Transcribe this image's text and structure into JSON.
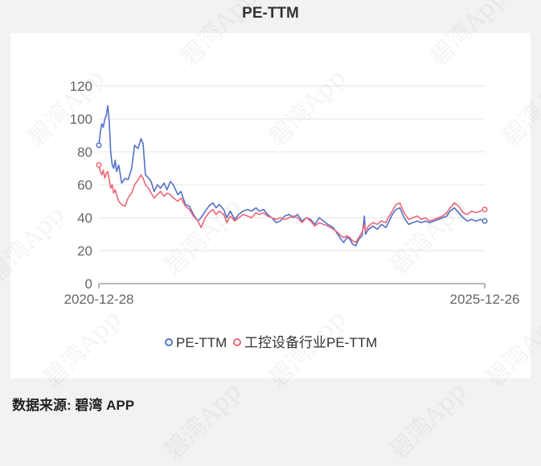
{
  "title": "PE-TTM",
  "source": "数据来源: 碧湾 APP",
  "watermark": "碧湾App",
  "chart_data": {
    "type": "line",
    "title": "PE-TTM",
    "x_start": "2020-12-28",
    "x_end": "2025-12-26",
    "x_ticks": [
      "2020-12-28",
      "2025-12-26"
    ],
    "y_ticks": [
      0,
      20,
      40,
      60,
      80,
      100,
      120
    ],
    "ylim": [
      0,
      120
    ],
    "grid": true,
    "legend_position": "bottom",
    "series": [
      {
        "name": "PE-TTM",
        "color": "#5470c6",
        "points": [
          [
            "2020-12-28",
            84
          ],
          [
            "2021-01-04",
            92
          ],
          [
            "2021-01-11",
            97
          ],
          [
            "2021-01-18",
            95
          ],
          [
            "2021-01-25",
            100
          ],
          [
            "2021-02-01",
            102
          ],
          [
            "2021-02-08",
            108
          ],
          [
            "2021-02-15",
            98
          ],
          [
            "2021-02-22",
            80
          ],
          [
            "2021-03-01",
            72
          ],
          [
            "2021-03-08",
            70
          ],
          [
            "2021-03-15",
            75
          ],
          [
            "2021-03-22",
            68
          ],
          [
            "2021-04-01",
            72
          ],
          [
            "2021-04-15",
            61
          ],
          [
            "2021-05-01",
            64
          ],
          [
            "2021-05-15",
            63
          ],
          [
            "2021-06-01",
            70
          ],
          [
            "2021-06-15",
            84
          ],
          [
            "2021-07-01",
            82
          ],
          [
            "2021-07-15",
            88
          ],
          [
            "2021-07-25",
            85
          ],
          [
            "2021-08-05",
            66
          ],
          [
            "2021-08-20",
            64
          ],
          [
            "2021-09-01",
            62
          ],
          [
            "2021-09-15",
            56
          ],
          [
            "2021-10-01",
            60
          ],
          [
            "2021-10-15",
            58
          ],
          [
            "2021-11-01",
            61
          ],
          [
            "2021-11-15",
            57
          ],
          [
            "2021-12-01",
            62
          ],
          [
            "2021-12-15",
            60
          ],
          [
            "2022-01-05",
            54
          ],
          [
            "2022-01-20",
            56
          ],
          [
            "2022-02-10",
            48
          ],
          [
            "2022-03-01",
            47
          ],
          [
            "2022-03-20",
            42
          ],
          [
            "2022-04-10",
            38
          ],
          [
            "2022-04-25",
            40
          ],
          [
            "2022-05-15",
            44
          ],
          [
            "2022-06-01",
            47
          ],
          [
            "2022-06-20",
            49
          ],
          [
            "2022-07-05",
            46
          ],
          [
            "2022-07-20",
            48
          ],
          [
            "2022-08-10",
            45
          ],
          [
            "2022-08-25",
            40
          ],
          [
            "2022-09-10",
            44
          ],
          [
            "2022-10-01",
            39
          ],
          [
            "2022-10-20",
            42
          ],
          [
            "2022-11-10",
            44
          ],
          [
            "2022-12-01",
            45
          ],
          [
            "2022-12-20",
            44
          ],
          [
            "2023-01-10",
            46
          ],
          [
            "2023-01-25",
            44
          ],
          [
            "2023-02-15",
            45
          ],
          [
            "2023-03-05",
            42
          ],
          [
            "2023-03-25",
            40
          ],
          [
            "2023-04-15",
            37
          ],
          [
            "2023-05-05",
            38
          ],
          [
            "2023-05-25",
            41
          ],
          [
            "2023-06-15",
            42
          ],
          [
            "2023-07-05",
            40
          ],
          [
            "2023-07-25",
            42
          ],
          [
            "2023-08-15",
            38
          ],
          [
            "2023-09-05",
            40
          ],
          [
            "2023-09-25",
            39
          ],
          [
            "2023-10-15",
            36
          ],
          [
            "2023-11-05",
            40
          ],
          [
            "2023-11-25",
            38
          ],
          [
            "2023-12-15",
            36
          ],
          [
            "2024-01-10",
            34
          ],
          [
            "2024-01-31",
            30
          ],
          [
            "2024-02-15",
            27
          ],
          [
            "2024-02-28",
            25
          ],
          [
            "2024-03-15",
            28
          ],
          [
            "2024-03-28",
            27
          ],
          [
            "2024-04-10",
            24
          ],
          [
            "2024-04-25",
            23
          ],
          [
            "2024-05-10",
            27
          ],
          [
            "2024-05-25",
            29
          ],
          [
            "2024-06-05",
            41
          ],
          [
            "2024-06-10",
            30
          ],
          [
            "2024-06-25",
            33
          ],
          [
            "2024-07-15",
            35
          ],
          [
            "2024-08-05",
            33
          ],
          [
            "2024-08-25",
            36
          ],
          [
            "2024-09-15",
            34
          ],
          [
            "2024-09-30",
            38
          ],
          [
            "2024-10-15",
            42
          ],
          [
            "2024-11-01",
            45
          ],
          [
            "2024-11-20",
            46
          ],
          [
            "2024-12-10",
            40
          ],
          [
            "2024-12-31",
            36
          ],
          [
            "2025-01-20",
            37
          ],
          [
            "2025-02-10",
            38
          ],
          [
            "2025-03-01",
            37
          ],
          [
            "2025-03-20",
            38
          ],
          [
            "2025-04-10",
            37
          ],
          [
            "2025-05-01",
            38
          ],
          [
            "2025-05-20",
            39
          ],
          [
            "2025-06-10",
            40
          ],
          [
            "2025-06-30",
            41
          ],
          [
            "2025-07-15",
            44
          ],
          [
            "2025-08-05",
            46
          ],
          [
            "2025-08-25",
            43
          ],
          [
            "2025-09-15",
            40
          ],
          [
            "2025-10-05",
            38
          ],
          [
            "2025-10-25",
            39
          ],
          [
            "2025-11-15",
            38
          ],
          [
            "2025-12-05",
            39
          ],
          [
            "2025-12-26",
            38
          ]
        ]
      },
      {
        "name": "工控设备行业PE-TTM",
        "color": "#ee6677",
        "points": [
          [
            "2020-12-28",
            72
          ],
          [
            "2021-01-04",
            68
          ],
          [
            "2021-01-11",
            66
          ],
          [
            "2021-01-18",
            69
          ],
          [
            "2021-01-25",
            64
          ],
          [
            "2021-02-01",
            67
          ],
          [
            "2021-02-08",
            68
          ],
          [
            "2021-02-15",
            63
          ],
          [
            "2021-02-22",
            58
          ],
          [
            "2021-03-01",
            60
          ],
          [
            "2021-03-08",
            55
          ],
          [
            "2021-03-15",
            57
          ],
          [
            "2021-03-22",
            54
          ],
          [
            "2021-04-01",
            50
          ],
          [
            "2021-04-15",
            48
          ],
          [
            "2021-05-01",
            47
          ],
          [
            "2021-05-15",
            52
          ],
          [
            "2021-06-01",
            55
          ],
          [
            "2021-06-15",
            60
          ],
          [
            "2021-07-01",
            63
          ],
          [
            "2021-07-15",
            66
          ],
          [
            "2021-07-25",
            64
          ],
          [
            "2021-08-05",
            60
          ],
          [
            "2021-08-20",
            58
          ],
          [
            "2021-09-01",
            55
          ],
          [
            "2021-09-15",
            52
          ],
          [
            "2021-10-01",
            54
          ],
          [
            "2021-10-15",
            56
          ],
          [
            "2021-11-01",
            53
          ],
          [
            "2021-11-15",
            55
          ],
          [
            "2021-12-01",
            54
          ],
          [
            "2021-12-15",
            52
          ],
          [
            "2022-01-05",
            50
          ],
          [
            "2022-01-20",
            52
          ],
          [
            "2022-02-10",
            47
          ],
          [
            "2022-03-01",
            45
          ],
          [
            "2022-03-20",
            41
          ],
          [
            "2022-04-10",
            38
          ],
          [
            "2022-04-25",
            34
          ],
          [
            "2022-05-15",
            40
          ],
          [
            "2022-06-01",
            43
          ],
          [
            "2022-06-20",
            45
          ],
          [
            "2022-07-05",
            42
          ],
          [
            "2022-07-20",
            44
          ],
          [
            "2022-08-10",
            42
          ],
          [
            "2022-08-25",
            37
          ],
          [
            "2022-09-10",
            41
          ],
          [
            "2022-10-01",
            38
          ],
          [
            "2022-10-20",
            40
          ],
          [
            "2022-11-10",
            42
          ],
          [
            "2022-12-01",
            41
          ],
          [
            "2022-12-20",
            40
          ],
          [
            "2023-01-10",
            43
          ],
          [
            "2023-01-25",
            42
          ],
          [
            "2023-02-15",
            43
          ],
          [
            "2023-03-05",
            41
          ],
          [
            "2023-03-25",
            40
          ],
          [
            "2023-04-15",
            39
          ],
          [
            "2023-05-05",
            40
          ],
          [
            "2023-05-25",
            39
          ],
          [
            "2023-06-15",
            40
          ],
          [
            "2023-07-05",
            41
          ],
          [
            "2023-07-25",
            40
          ],
          [
            "2023-08-15",
            37
          ],
          [
            "2023-09-05",
            40
          ],
          [
            "2023-09-25",
            38
          ],
          [
            "2023-10-15",
            35
          ],
          [
            "2023-11-05",
            37
          ],
          [
            "2023-11-25",
            36
          ],
          [
            "2023-12-15",
            35
          ],
          [
            "2024-01-10",
            33
          ],
          [
            "2024-01-31",
            31
          ],
          [
            "2024-02-15",
            29
          ],
          [
            "2024-02-28",
            28
          ],
          [
            "2024-03-15",
            29
          ],
          [
            "2024-03-28",
            28
          ],
          [
            "2024-04-10",
            26
          ],
          [
            "2024-04-25",
            25
          ],
          [
            "2024-05-10",
            28
          ],
          [
            "2024-05-25",
            31
          ],
          [
            "2024-06-05",
            36
          ],
          [
            "2024-06-10",
            32
          ],
          [
            "2024-06-25",
            35
          ],
          [
            "2024-07-15",
            37
          ],
          [
            "2024-08-05",
            36
          ],
          [
            "2024-08-25",
            38
          ],
          [
            "2024-09-15",
            37
          ],
          [
            "2024-09-30",
            41
          ],
          [
            "2024-10-15",
            44
          ],
          [
            "2024-11-01",
            48
          ],
          [
            "2024-11-20",
            49
          ],
          [
            "2024-12-10",
            43
          ],
          [
            "2024-12-31",
            39
          ],
          [
            "2025-01-20",
            40
          ],
          [
            "2025-02-10",
            41
          ],
          [
            "2025-03-01",
            39
          ],
          [
            "2025-03-20",
            40
          ],
          [
            "2025-04-10",
            38
          ],
          [
            "2025-05-01",
            39
          ],
          [
            "2025-05-20",
            40
          ],
          [
            "2025-06-10",
            41
          ],
          [
            "2025-06-30",
            43
          ],
          [
            "2025-07-15",
            46
          ],
          [
            "2025-08-05",
            49
          ],
          [
            "2025-08-25",
            47
          ],
          [
            "2025-09-15",
            43
          ],
          [
            "2025-10-05",
            42
          ],
          [
            "2025-10-25",
            44
          ],
          [
            "2025-11-15",
            43
          ],
          [
            "2025-12-05",
            44
          ],
          [
            "2025-12-26",
            45
          ]
        ]
      }
    ]
  }
}
